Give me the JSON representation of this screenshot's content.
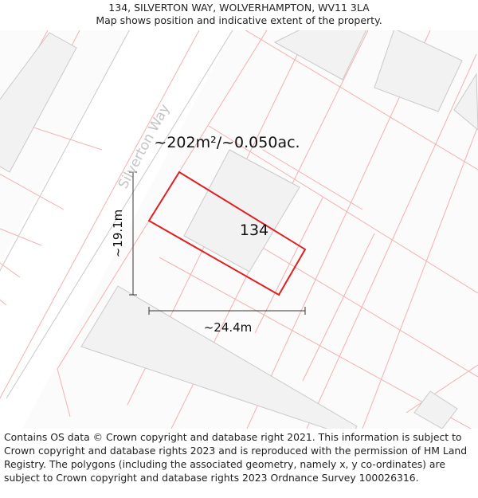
{
  "header": {
    "title": "134, SILVERTON WAY, WOLVERHAMPTON, WV11 3LA",
    "subtitle": "Map shows position and indicative extent of the property."
  },
  "map": {
    "street_name": "Silverton Way",
    "area_label": "~202m²/~0.050ac.",
    "house_number": "134",
    "height_label": "~19.1m",
    "width_label": "~24.4m",
    "colors": {
      "boundary": "#e02020",
      "parcel_line": "#f4b0b0",
      "building_fill": "#f2f2f2",
      "building_stroke": "#c9c9c9",
      "road_edge": "#c8c8c8",
      "dimension_line": "#333333"
    }
  },
  "footer": {
    "attribution": "Contains OS data © Crown copyright and database right 2021. This information is subject to Crown copyright and database rights 2023 and is reproduced with the permission of HM Land Registry. The polygons (including the associated geometry, namely x, y co-ordinates) are subject to Crown copyright and database rights 2023 Ordnance Survey 100026316."
  }
}
